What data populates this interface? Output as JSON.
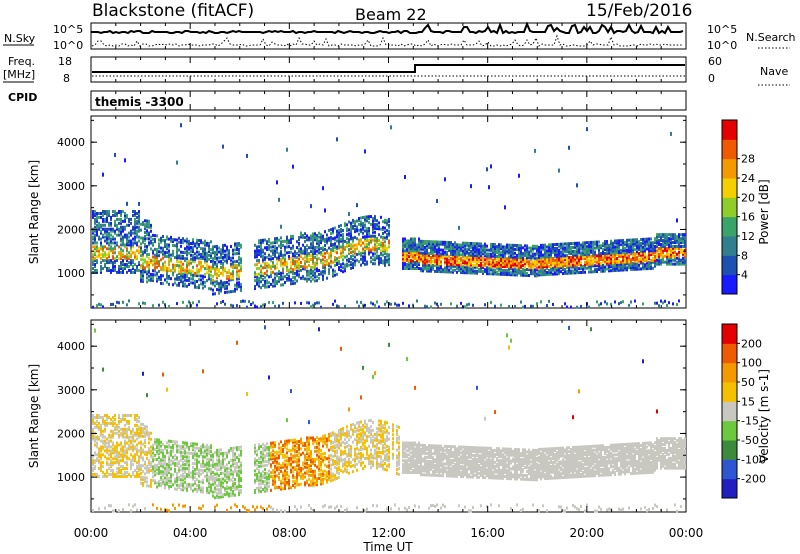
{
  "header": {
    "station": "Blackstone (fitACF)",
    "beam": "Beam 22",
    "date": "15/Feb/2016"
  },
  "panels": {
    "nsky_label": "N.Sky",
    "nsky_ticks": [
      "10^5",
      "10^0"
    ],
    "nsearch_label": "N.Search",
    "nsearch_ticks": [
      "10^5",
      "10^0"
    ],
    "freq_label_line1": "Freq.",
    "freq_label_line2": "[MHz]",
    "freq_ticks": [
      "18",
      "8"
    ],
    "nave_label": "Nave",
    "nave_ticks": [
      "60",
      "0"
    ],
    "cpid_label": "CPID",
    "cpid_value": "themis -3300"
  },
  "chart_data": [
    {
      "type": "heatmap",
      "name": "power",
      "ylabel": "Slant Range [km]",
      "yticks": [
        1000,
        2000,
        3000,
        4000
      ],
      "ylim": [
        200,
        4600
      ],
      "xticks": [
        "00:00",
        "04:00",
        "08:00",
        "12:00",
        "16:00",
        "20:00",
        "00:00"
      ],
      "colorbar": {
        "label": "Power [dB]",
        "ticks": [
          "4",
          "8",
          "12",
          "16",
          "20",
          "24",
          "28"
        ],
        "colors": [
          "#1a1aff",
          "#1f4fb0",
          "#2f7f8f",
          "#3aa36a",
          "#8fcd2a",
          "#f4d000",
          "#f49a00",
          "#ee5a00",
          "#e30000"
        ]
      }
    },
    {
      "type": "heatmap",
      "name": "velocity",
      "ylabel": "Slant Range [km]",
      "yticks": [
        1000,
        2000,
        3000,
        4000
      ],
      "ylim": [
        200,
        4600
      ],
      "xlabel": "Time UT",
      "xticks": [
        "00:00",
        "04:00",
        "08:00",
        "12:00",
        "16:00",
        "20:00",
        "00:00"
      ],
      "colorbar": {
        "label": "Velocity [m s-1]",
        "ticks": [
          "200",
          "100",
          "50",
          "15",
          "-15",
          "-50",
          "-100",
          "-200"
        ],
        "colors": [
          "#2020c0",
          "#2d56d0",
          "#3d8a3d",
          "#6cc83c",
          "#c8c8c0",
          "#f4c000",
          "#f49a00",
          "#ee5a00",
          "#e30000"
        ]
      }
    }
  ]
}
